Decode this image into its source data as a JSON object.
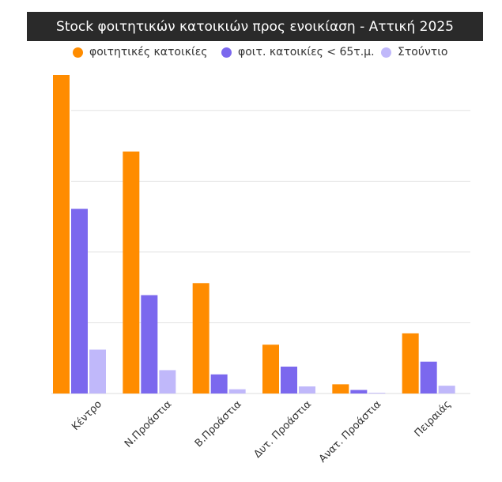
{
  "chart_data": {
    "type": "bar",
    "title": "Stock  φοιτητικών κατοικιών προς ενοικίαση - Αττική 2025",
    "categories": [
      "Κέντρο",
      "Ν.Προάστια",
      "Β.Προάστια",
      "Δυτ. Προάστια",
      "Ανατ. Προάστια",
      "Πειραιάς"
    ],
    "series": [
      {
        "name": "φοιτητικές κατοικίες",
        "color": "#ff8c00",
        "values": [
          4.5,
          3.42,
          1.56,
          0.69,
          0.13,
          0.85
        ]
      },
      {
        "name": "φοιτ. κατοικίες < 65τ.μ.",
        "color": "#7b68ee",
        "values": [
          2.61,
          1.39,
          0.27,
          0.38,
          0.05,
          0.45
        ]
      },
      {
        "name": "Στούντιο",
        "color": "#c0b8fa",
        "values": [
          0.62,
          0.33,
          0.06,
          0.1,
          0.01,
          0.11
        ]
      }
    ],
    "ylim": [
      0,
      4.5
    ],
    "grid": true,
    "legend_position": "top"
  }
}
